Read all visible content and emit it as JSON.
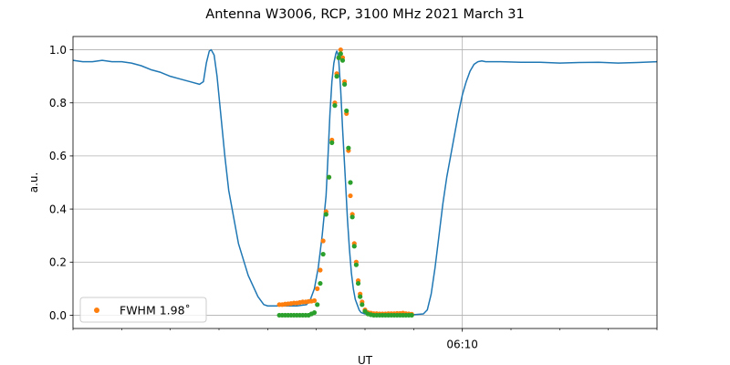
{
  "chart_data": {
    "type": "scatter",
    "title": "Antenna W3006, RCP, 3100 MHz 2021 March 31",
    "xlabel": "UT",
    "ylabel": "a.u.",
    "x_unit": "minutes",
    "xlim": [
      -20,
      10
    ],
    "ylim": [
      -0.05,
      1.05
    ],
    "x_ticks": [
      {
        "value": 0,
        "label": "06:10"
      }
    ],
    "x_minor_ticks": [
      -20,
      -17.5,
      -15,
      -12.5,
      -10,
      -7.5,
      -5,
      -2.5,
      2.5,
      5,
      7.5,
      10
    ],
    "y_ticks": [
      0.0,
      0.2,
      0.4,
      0.6,
      0.8,
      1.0
    ],
    "y_tick_labels": [
      "0.0",
      "0.2",
      "0.4",
      "0.6",
      "0.8",
      "1.0"
    ],
    "grid": true,
    "legend_position": "bottom-left",
    "legend_entries": [
      "FWHM 1.98$^\\circ$"
    ],
    "legend_display": "FWHM 1.98˚",
    "colors": {
      "line": "#1f77b4",
      "orange": "#ff7f0e",
      "green": "#2ca02c"
    },
    "series": [
      {
        "kind": "line",
        "color": "#1f77b4",
        "x": [
          -20,
          -19.5,
          -19,
          -18.5,
          -18,
          -17.5,
          -17,
          -16.5,
          -16,
          -15.5,
          -15,
          -14.5,
          -14,
          -13.5,
          -13.3,
          -13.15,
          -13.0,
          -12.9,
          -12.75,
          -12.6,
          -12.4,
          -12.2,
          -12.0,
          -11.5,
          -11.0,
          -10.5,
          -10.2,
          -10.0,
          -9.5,
          -9.0,
          -8.5,
          -8.0,
          -7.8,
          -7.6,
          -7.4,
          -7.2,
          -7.0,
          -6.9,
          -6.8,
          -6.7,
          -6.6,
          -6.5,
          -6.45,
          -6.4,
          -6.35,
          -6.25,
          -6.15,
          -6.0,
          -5.9,
          -5.8,
          -5.7,
          -5.6,
          -5.5,
          -5.4,
          -5.3,
          -5.2,
          -5.0,
          -4.5,
          -4.0,
          -3.5,
          -3.0,
          -2.5,
          -2.0,
          -1.8,
          -1.6,
          -1.4,
          -1.2,
          -1.0,
          -0.8,
          -0.6,
          -0.4,
          -0.2,
          0.0,
          0.2,
          0.4,
          0.6,
          0.8,
          1.0,
          1.2,
          1.5,
          2,
          3,
          4,
          5,
          6,
          7,
          8,
          9,
          10
        ],
        "y": [
          0.96,
          0.955,
          0.955,
          0.96,
          0.955,
          0.955,
          0.95,
          0.94,
          0.925,
          0.915,
          0.9,
          0.89,
          0.88,
          0.87,
          0.88,
          0.95,
          0.995,
          1.0,
          0.98,
          0.9,
          0.75,
          0.6,
          0.47,
          0.27,
          0.15,
          0.07,
          0.04,
          0.035,
          0.035,
          0.035,
          0.035,
          0.04,
          0.06,
          0.1,
          0.18,
          0.3,
          0.45,
          0.6,
          0.76,
          0.88,
          0.95,
          0.985,
          0.995,
          0.985,
          0.96,
          0.85,
          0.7,
          0.5,
          0.36,
          0.25,
          0.16,
          0.1,
          0.06,
          0.04,
          0.02,
          0.01,
          0.005,
          0.002,
          0.002,
          0.002,
          0.002,
          0.002,
          0.005,
          0.02,
          0.08,
          0.18,
          0.3,
          0.42,
          0.52,
          0.6,
          0.68,
          0.76,
          0.83,
          0.88,
          0.92,
          0.945,
          0.955,
          0.958,
          0.955,
          0.955,
          0.955,
          0.953,
          0.953,
          0.95,
          0.952,
          0.953,
          0.95,
          0.952,
          0.955
        ]
      },
      {
        "kind": "points",
        "name": "FWHM 1.98$^\\circ$",
        "color": "#ff7f0e",
        "x": [
          -9.4,
          -9.25,
          -9.1,
          -8.95,
          -8.8,
          -8.65,
          -8.5,
          -8.35,
          -8.2,
          -8.05,
          -7.9,
          -7.75,
          -7.6,
          -7.45,
          -7.3,
          -7.15,
          -7.0,
          -6.85,
          -6.7,
          -6.55,
          -6.45,
          -6.35,
          -6.25,
          -6.15,
          -6.05,
          -5.95,
          -5.85,
          -5.75,
          -5.65,
          -5.55,
          -5.45,
          -5.35,
          -5.25,
          -5.15,
          -5.0,
          -4.85,
          -4.7,
          -4.55,
          -4.4,
          -4.25,
          -4.1,
          -3.95,
          -3.8,
          -3.65,
          -3.5,
          -3.35,
          -3.2,
          -3.05,
          -2.9,
          -2.75,
          -2.6
        ],
        "y": [
          0.04,
          0.04,
          0.042,
          0.043,
          0.044,
          0.046,
          0.046,
          0.048,
          0.05,
          0.05,
          0.052,
          0.053,
          0.055,
          0.1,
          0.17,
          0.28,
          0.39,
          0.52,
          0.66,
          0.8,
          0.91,
          0.97,
          1.0,
          0.97,
          0.88,
          0.76,
          0.62,
          0.45,
          0.38,
          0.27,
          0.2,
          0.13,
          0.08,
          0.05,
          0.02,
          0.01,
          0.008,
          0.006,
          0.006,
          0.005,
          0.005,
          0.005,
          0.006,
          0.006,
          0.006,
          0.007,
          0.007,
          0.008,
          0.006,
          0.005,
          0.004
        ]
      },
      {
        "kind": "points",
        "color": "#2ca02c",
        "x": [
          -9.4,
          -9.25,
          -9.1,
          -8.95,
          -8.8,
          -8.65,
          -8.5,
          -8.35,
          -8.2,
          -8.05,
          -7.9,
          -7.75,
          -7.6,
          -7.45,
          -7.3,
          -7.15,
          -7.0,
          -6.85,
          -6.7,
          -6.55,
          -6.45,
          -6.35,
          -6.25,
          -6.15,
          -6.05,
          -5.95,
          -5.85,
          -5.75,
          -5.65,
          -5.55,
          -5.45,
          -5.35,
          -5.25,
          -5.15,
          -5.0,
          -4.85,
          -4.7,
          -4.55,
          -4.4,
          -4.25,
          -4.1,
          -3.95,
          -3.8,
          -3.65,
          -3.5,
          -3.35,
          -3.2,
          -3.05,
          -2.9,
          -2.75,
          -2.6
        ],
        "y": [
          0.0,
          0.0,
          0.0,
          0.0,
          0.0,
          0.0,
          0.0,
          0.0,
          0.0,
          0.0,
          0.0,
          0.005,
          0.01,
          0.04,
          0.12,
          0.23,
          0.38,
          0.52,
          0.65,
          0.79,
          0.9,
          0.97,
          0.985,
          0.96,
          0.87,
          0.77,
          0.63,
          0.5,
          0.37,
          0.26,
          0.19,
          0.12,
          0.07,
          0.04,
          0.015,
          0.005,
          0.002,
          0.0,
          0.0,
          0.0,
          0.0,
          0.0,
          0.0,
          0.0,
          0.0,
          0.0,
          0.0,
          0.0,
          0.0,
          0.0,
          0.0
        ]
      }
    ]
  }
}
